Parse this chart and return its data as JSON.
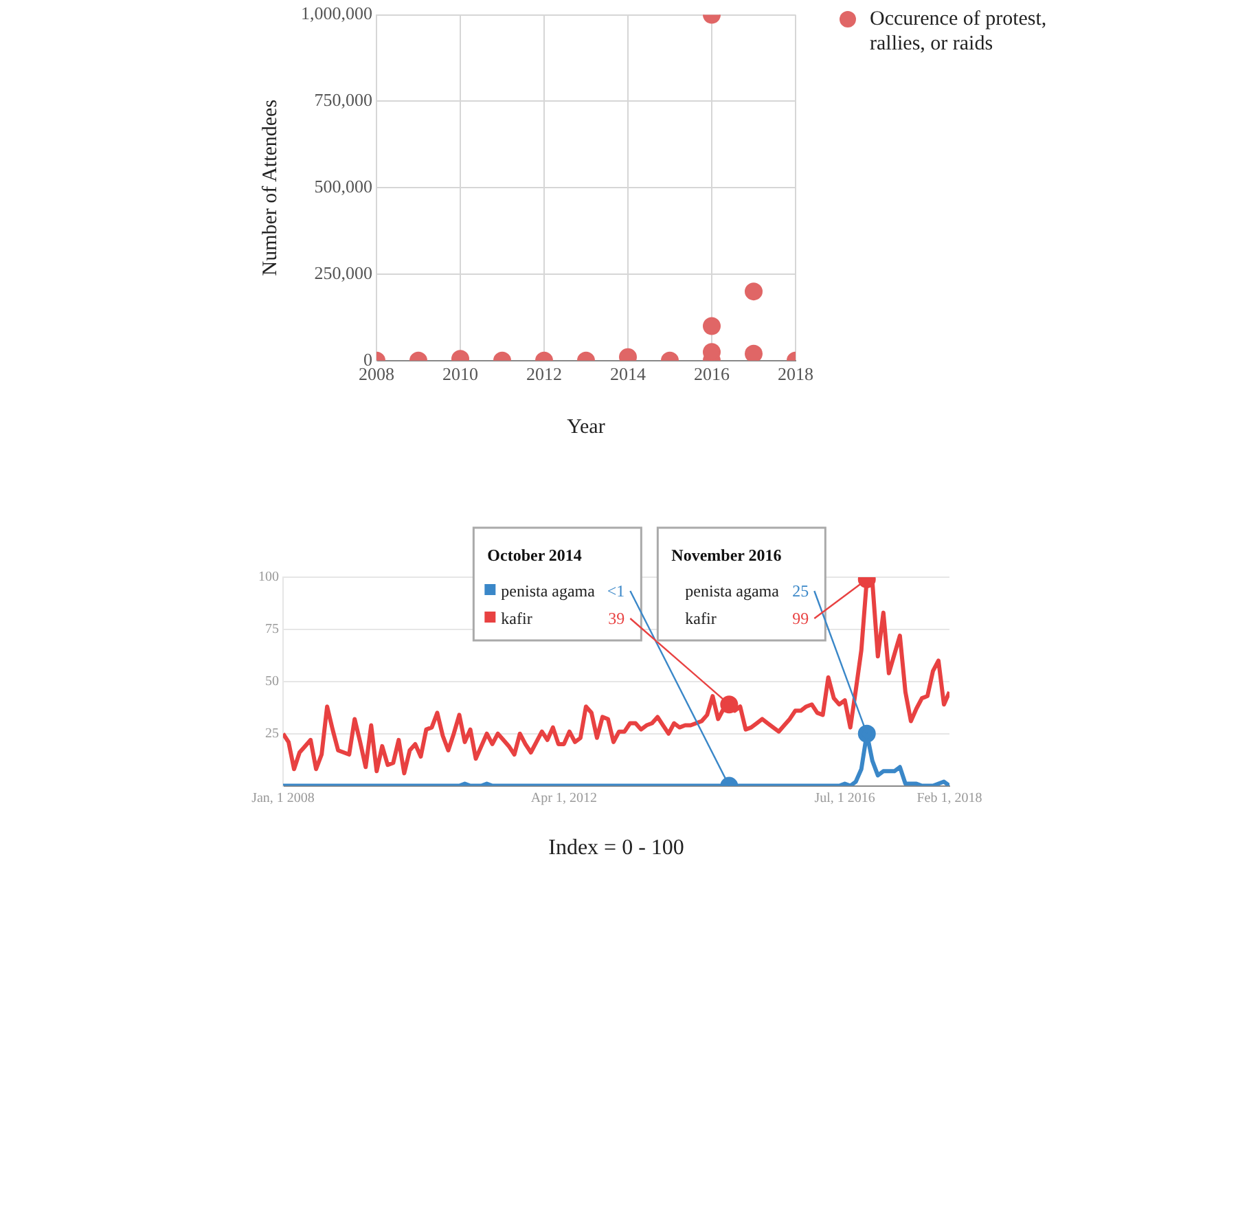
{
  "chart_data": [
    {
      "type": "scatter",
      "xlabel": "Year",
      "ylabel": "Number of Attendees",
      "legend": "right",
      "grid": true,
      "marker": "circle",
      "xlim": [
        2008,
        2018
      ],
      "xticks": [
        2008,
        2010,
        2012,
        2014,
        2016,
        2018
      ],
      "ylim": [
        0,
        1000000
      ],
      "yticks": [
        0,
        {
          "value": 250000,
          "label": "250,000"
        },
        {
          "value": 500000,
          "label": "500,000"
        },
        {
          "value": 750000,
          "label": "750,000"
        },
        {
          "value": 1000000,
          "label": "1,000,000"
        }
      ],
      "x": [
        2008,
        2009,
        2010,
        2011,
        2012,
        2013,
        2014,
        2015,
        2016,
        2016,
        2016,
        2016,
        2017,
        2017,
        2018
      ],
      "series": [
        {
          "name": "Occurence of protest, rallies, or raids",
          "color": "#e06666",
          "values": [
            0,
            0,
            5000,
            0,
            0,
            0,
            10000,
            0,
            0,
            25000,
            100000,
            1000000,
            20000,
            200000,
            0
          ]
        }
      ]
    },
    {
      "type": "line",
      "xlabel": "Index = 0 - 100",
      "grid": "y",
      "legend": "top",
      "xlim": [
        "2008-01",
        "2018-02"
      ],
      "xticks": [
        {
          "value": "2008-01",
          "label": "Jan, 1 2008"
        },
        {
          "value": "2012-04",
          "label": "Apr 1, 2012"
        },
        {
          "value": "2016-07",
          "label": "Jul, 1 2016"
        },
        {
          "value": "2018-02",
          "label": "Feb 1, 2018"
        }
      ],
      "ylim": [
        0,
        100
      ],
      "yticks": [
        25,
        50,
        75,
        100
      ],
      "annotations": [
        "October 2014",
        "November 2016"
      ],
      "x": [
        "2008-01",
        "2008-02",
        "2008-03",
        "2008-04",
        "2008-05",
        "2008-06",
        "2008-07",
        "2008-08",
        "2008-09",
        "2008-10",
        "2008-11",
        "2008-12",
        "2009-01",
        "2009-02",
        "2009-03",
        "2009-04",
        "2009-05",
        "2009-06",
        "2009-07",
        "2009-08",
        "2009-09",
        "2009-10",
        "2009-11",
        "2009-12",
        "2010-01",
        "2010-02",
        "2010-03",
        "2010-04",
        "2010-05",
        "2010-06",
        "2010-07",
        "2010-08",
        "2010-09",
        "2010-10",
        "2010-11",
        "2010-12",
        "2011-01",
        "2011-02",
        "2011-03",
        "2011-04",
        "2011-05",
        "2011-06",
        "2011-07",
        "2011-08",
        "2011-09",
        "2011-10",
        "2011-11",
        "2011-12",
        "2012-01",
        "2012-02",
        "2012-03",
        "2012-04",
        "2012-05",
        "2012-06",
        "2012-07",
        "2012-08",
        "2012-09",
        "2012-10",
        "2012-11",
        "2012-12",
        "2013-01",
        "2013-02",
        "2013-03",
        "2013-04",
        "2013-05",
        "2013-06",
        "2013-07",
        "2013-08",
        "2013-09",
        "2013-10",
        "2013-11",
        "2013-12",
        "2014-01",
        "2014-02",
        "2014-03",
        "2014-04",
        "2014-05",
        "2014-06",
        "2014-07",
        "2014-08",
        "2014-09",
        "2014-10",
        "2014-11",
        "2014-12",
        "2015-01",
        "2015-02",
        "2015-03",
        "2015-04",
        "2015-05",
        "2015-06",
        "2015-07",
        "2015-08",
        "2015-09",
        "2015-10",
        "2015-11",
        "2015-12",
        "2016-01",
        "2016-02",
        "2016-03",
        "2016-04",
        "2016-05",
        "2016-06",
        "2016-07",
        "2016-08",
        "2016-09",
        "2016-10",
        "2016-11",
        "2016-12",
        "2017-01",
        "2017-02",
        "2017-03",
        "2017-04",
        "2017-05",
        "2017-06",
        "2017-07",
        "2017-08",
        "2017-09",
        "2017-10",
        "2017-11",
        "2017-12",
        "2018-01",
        "2018-02"
      ],
      "series": [
        {
          "name": "penista agama",
          "color": "#3a87c8",
          "values": [
            0,
            0,
            0,
            0,
            0,
            0,
            0,
            0,
            0,
            0,
            0,
            0,
            0,
            0,
            0,
            0,
            0,
            0,
            0,
            0,
            0,
            0,
            0,
            0,
            0,
            0,
            0,
            0,
            0,
            0,
            0,
            0,
            0,
            1,
            0,
            0,
            0,
            1,
            0,
            0,
            0,
            0,
            0,
            0,
            0,
            0,
            0,
            0,
            0,
            0,
            0,
            0,
            0,
            0,
            0,
            0,
            0,
            0,
            0,
            0,
            0,
            0,
            0,
            0,
            0,
            0,
            0,
            0,
            0,
            0,
            0,
            0,
            0,
            0,
            0,
            0,
            0,
            0,
            0,
            0,
            0,
            0,
            0,
            0,
            0,
            0,
            0,
            0,
            0,
            0,
            0,
            0,
            0,
            0,
            0,
            0,
            0,
            0,
            0,
            0,
            0,
            0,
            1,
            0,
            2,
            8,
            25,
            12,
            5,
            7,
            7,
            7,
            9,
            1,
            1,
            1,
            0,
            0,
            0,
            1,
            2,
            0
          ],
          "value_labels": [
            null,
            null,
            null,
            null,
            null,
            null,
            null,
            null,
            null,
            null,
            null,
            null,
            null,
            null,
            null,
            null,
            null,
            null,
            null,
            null,
            null,
            null,
            null,
            null,
            null,
            null,
            null,
            null,
            null,
            null,
            null,
            null,
            null,
            null,
            null,
            null,
            null,
            null,
            null,
            null,
            null,
            null,
            null,
            null,
            null,
            null,
            null,
            null,
            null,
            null,
            null,
            null,
            null,
            null,
            null,
            null,
            null,
            null,
            null,
            null,
            null,
            null,
            null,
            null,
            null,
            null,
            null,
            null,
            null,
            null,
            null,
            null,
            null,
            null,
            null,
            null,
            null,
            null,
            null,
            null,
            null,
            "<1",
            null,
            null,
            null,
            null,
            null,
            null,
            null,
            null,
            null,
            null,
            null,
            null,
            null,
            null,
            null,
            null,
            null,
            null,
            null,
            null,
            null,
            null,
            null,
            null,
            "25",
            null,
            null,
            null,
            null,
            null,
            null,
            null,
            null,
            null,
            null,
            null,
            null,
            null,
            null,
            null
          ]
        },
        {
          "name": "kafir",
          "color": "#e84141",
          "values": [
            25,
            21,
            8,
            16,
            19,
            22,
            8,
            15,
            38,
            27,
            17,
            16,
            15,
            32,
            21,
            9,
            29,
            7,
            19,
            10,
            11,
            22,
            6,
            17,
            20,
            14,
            27,
            28,
            35,
            24,
            17,
            25,
            34,
            21,
            27,
            13,
            19,
            25,
            20,
            25,
            22,
            19,
            15,
            25,
            20,
            16,
            21,
            26,
            22,
            28,
            20,
            20,
            26,
            21,
            23,
            38,
            35,
            23,
            33,
            32,
            21,
            26,
            26,
            30,
            30,
            27,
            29,
            30,
            33,
            29,
            25,
            30,
            28,
            29,
            29,
            30,
            31,
            34,
            43,
            32,
            37,
            39,
            36,
            38,
            27,
            28,
            30,
            32,
            30,
            28,
            26,
            29,
            32,
            36,
            36,
            38,
            39,
            35,
            34,
            52,
            42,
            39,
            41,
            28,
            46,
            65,
            99,
            98,
            62,
            83,
            54,
            63,
            72,
            45,
            31,
            37,
            42,
            43,
            55,
            60,
            39,
            45
          ],
          "value_labels": [
            null,
            null,
            null,
            null,
            null,
            null,
            null,
            null,
            null,
            null,
            null,
            null,
            null,
            null,
            null,
            null,
            null,
            null,
            null,
            null,
            null,
            null,
            null,
            null,
            null,
            null,
            null,
            null,
            null,
            null,
            null,
            null,
            null,
            null,
            null,
            null,
            null,
            null,
            null,
            null,
            null,
            null,
            null,
            null,
            null,
            null,
            null,
            null,
            null,
            null,
            null,
            null,
            null,
            null,
            null,
            null,
            null,
            null,
            null,
            null,
            null,
            null,
            null,
            null,
            null,
            null,
            null,
            null,
            null,
            null,
            null,
            null,
            null,
            null,
            null,
            null,
            null,
            null,
            null,
            null,
            null,
            "39",
            null,
            null,
            null,
            null,
            null,
            null,
            null,
            null,
            null,
            null,
            null,
            null,
            null,
            null,
            null,
            null,
            null,
            null,
            null,
            null,
            null,
            null,
            null,
            null,
            "99",
            null,
            null,
            null,
            null,
            null,
            null,
            null,
            null,
            null,
            null,
            null,
            null,
            null,
            null,
            null
          ]
        }
      ]
    }
  ]
}
